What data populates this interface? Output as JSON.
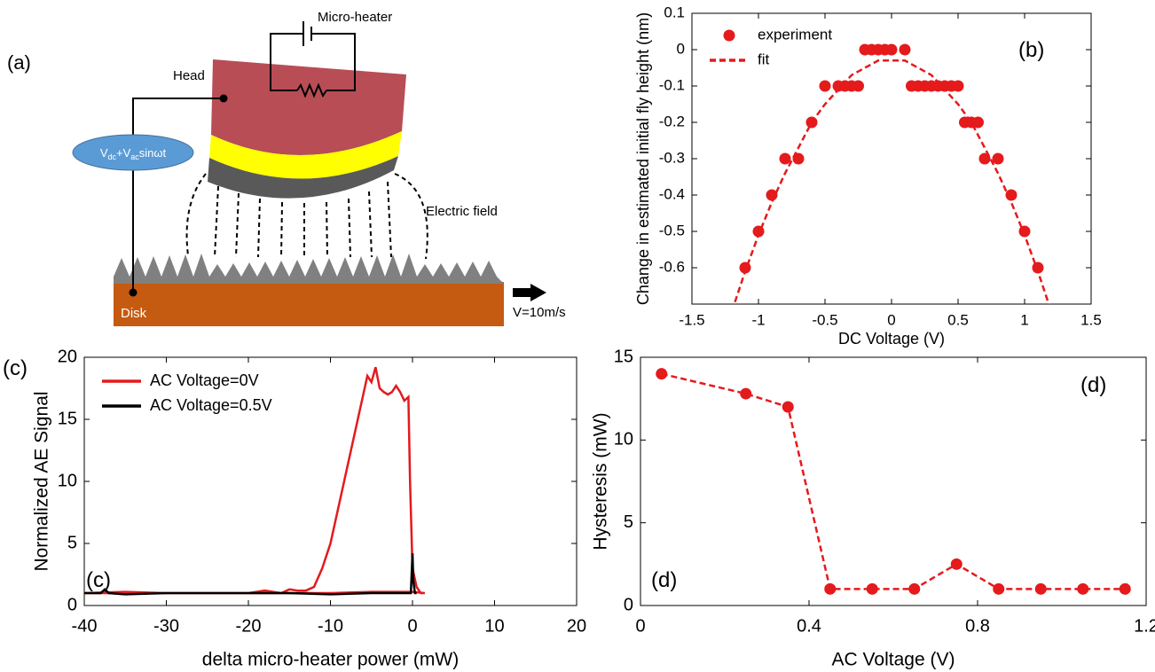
{
  "diagram": {
    "panel_label": "(a)",
    "micro_heater": "Micro-heater",
    "head": "Head",
    "electric_field": "Electric field",
    "disk": "Disk",
    "velocity": "V=10m/s",
    "source": [
      "V",
      "dc",
      "+V",
      "ac",
      "sinωt"
    ]
  },
  "chart_data": [
    {
      "type": "scatter",
      "xlabel": "DC Voltage (V)",
      "ylabel": "Change in estimated initial fly height (nm)",
      "xlim": [
        -1.5,
        1.5
      ],
      "ylim": [
        -0.7,
        0.1
      ],
      "xticks": [
        -1.5,
        -1,
        -0.5,
        0,
        0.5,
        1,
        1.5
      ],
      "yticks": [
        -0.6,
        -0.5,
        -0.4,
        -0.3,
        -0.2,
        -0.1,
        0,
        0.1
      ],
      "legend": "upper left",
      "annotations": [
        "(b)"
      ],
      "series": [
        {
          "name": "experiment",
          "color": "#e41a1c",
          "marker": "circle",
          "line_style": "none",
          "x": [
            -1.1,
            -1.0,
            -0.9,
            -0.8,
            -0.7,
            -0.6,
            -0.5,
            -0.4,
            -0.35,
            -0.3,
            -0.25,
            -0.2,
            -0.15,
            -0.1,
            -0.05,
            0,
            0.1,
            0.15,
            0.2,
            0.25,
            0.3,
            0.35,
            0.4,
            0.45,
            0.5,
            0.55,
            0.6,
            0.65,
            0.7,
            0.8,
            0.9,
            1.0,
            1.1
          ],
          "values": [
            -0.6,
            -0.5,
            -0.4,
            -0.3,
            -0.3,
            -0.2,
            -0.1,
            -0.1,
            -0.1,
            -0.1,
            -0.1,
            0,
            0,
            0,
            0,
            0,
            0,
            -0.1,
            -0.1,
            -0.1,
            -0.1,
            -0.1,
            -0.1,
            -0.1,
            -0.1,
            -0.2,
            -0.2,
            -0.2,
            -0.3,
            -0.3,
            -0.4,
            -0.5,
            -0.6
          ]
        },
        {
          "name": "fit",
          "color": "#e41a1c",
          "marker": "none",
          "line_style": "dashed",
          "x": [
            -1.2,
            -1.1,
            -1.0,
            -0.9,
            -0.8,
            -0.7,
            -0.6,
            -0.5,
            -0.4,
            -0.3,
            -0.2,
            -0.1,
            0,
            0.1,
            0.2,
            0.3,
            0.4,
            0.5,
            0.6,
            0.7,
            0.8,
            0.9,
            1.0,
            1.1,
            1.2
          ],
          "values": [
            -0.72,
            -0.61,
            -0.51,
            -0.42,
            -0.34,
            -0.27,
            -0.2,
            -0.15,
            -0.11,
            -0.07,
            -0.05,
            -0.03,
            -0.03,
            -0.03,
            -0.05,
            -0.07,
            -0.11,
            -0.15,
            -0.2,
            -0.27,
            -0.34,
            -0.42,
            -0.51,
            -0.61,
            -0.72
          ]
        }
      ]
    },
    {
      "type": "line",
      "xlabel": "delta micro-heater power (mW)",
      "ylabel": "Normalized AE Signal",
      "xlim": [
        -40,
        20
      ],
      "ylim": [
        0,
        20
      ],
      "xticks": [
        -40,
        -30,
        -20,
        -10,
        0,
        10,
        20
      ],
      "yticks": [
        0,
        5,
        10,
        15,
        20
      ],
      "legend": "upper left",
      "annotations": [
        "(c)",
        "(c)"
      ],
      "series": [
        {
          "name": "AC Voltage=0V",
          "color": "#e41a1c",
          "marker": "none",
          "line_style": "solid",
          "x": [
            -40,
            -35,
            -30,
            -25,
            -20,
            -18,
            -16,
            -15,
            -14,
            -13,
            -12,
            -11,
            -10,
            -9,
            -8,
            -7,
            -6,
            -5.5,
            -5,
            -4.5,
            -4,
            -3.5,
            -3,
            -2.5,
            -2,
            -1.5,
            -1,
            -0.5,
            -0.3,
            0,
            0.5,
            1,
            1.5,
            0,
            -5,
            -10,
            -20,
            -30,
            -40
          ],
          "values": [
            1,
            1.1,
            1,
            1,
            1,
            1.2,
            1,
            1.3,
            1.2,
            1.2,
            1.5,
            3,
            5,
            8,
            11,
            14,
            17,
            18.5,
            18,
            19.2,
            17.5,
            17.2,
            17,
            17.2,
            17.7,
            17.2,
            16.5,
            16.8,
            10,
            3,
            1.5,
            1,
            1,
            1.1,
            1.1,
            1,
            1,
            1,
            1
          ]
        },
        {
          "name": "AC Voltage=0.5V",
          "color": "#000000",
          "marker": "none",
          "line_style": "solid",
          "x": [
            -40,
            -38,
            -37.5,
            -37,
            -35,
            -30,
            -25,
            -20,
            -15,
            -10,
            -5,
            -1,
            -0.2,
            0,
            0.1,
            0.3,
            0.5
          ],
          "values": [
            1,
            1,
            1.3,
            1,
            0.9,
            1,
            1,
            1,
            1,
            0.9,
            1,
            1,
            1,
            4.2,
            2,
            1,
            1
          ]
        }
      ]
    },
    {
      "type": "line",
      "xlabel": "AC Voltage (V)",
      "ylabel": "Hysteresis (mW)",
      "xlim": [
        0,
        1.2
      ],
      "ylim": [
        0,
        15
      ],
      "xticks": [
        0,
        0.4,
        0.8,
        1.2
      ],
      "yticks": [
        0,
        5,
        10,
        15
      ],
      "annotations": [
        "(d)",
        "(d)"
      ],
      "series": [
        {
          "color": "#e41a1c",
          "marker": "circle",
          "line_style": "dashed",
          "x": [
            0.05,
            0.25,
            0.35,
            0.45,
            0.55,
            0.65,
            0.75,
            0.85,
            0.95,
            1.05,
            1.15
          ],
          "values": [
            14,
            12.8,
            12,
            1,
            1,
            1,
            2.5,
            1,
            1,
            1,
            1
          ]
        }
      ]
    }
  ]
}
